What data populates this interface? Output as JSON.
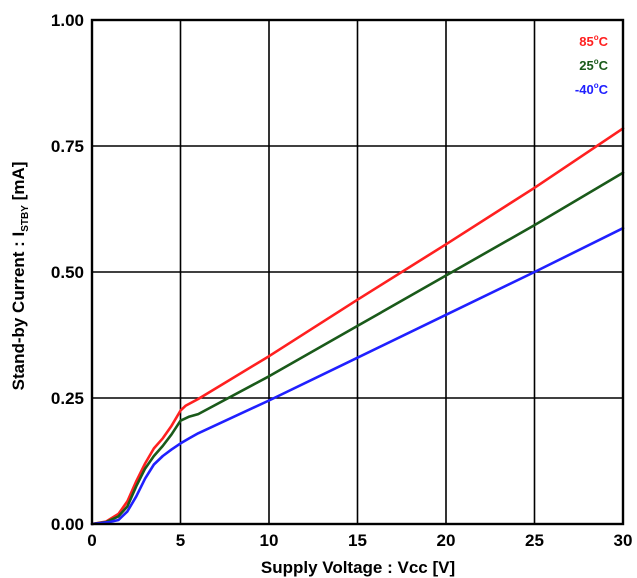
{
  "chart_data": {
    "type": "line",
    "xlabel": "Supply Voltage : Vcc [V]",
    "ylabel_main": "Stand-by Current : I",
    "ylabel_sub": "STBY",
    "ylabel_unit": " [mA]",
    "xlim": [
      0,
      30
    ],
    "ylim": [
      0,
      1.0
    ],
    "x_ticks": [
      0,
      5,
      10,
      15,
      20,
      25,
      30
    ],
    "x_tick_labels": [
      "0",
      "5",
      "10",
      "15",
      "20",
      "25",
      "30"
    ],
    "y_ticks": [
      0,
      0.25,
      0.5,
      0.75,
      1.0
    ],
    "y_tick_labels": [
      "0.00",
      "0.25",
      "0.50",
      "0.75",
      "1.00"
    ],
    "grid": true,
    "legend_position": "top-right",
    "series": [
      {
        "name": "85°C",
        "name_main": "85",
        "name_sup": "o",
        "name_unit": "C",
        "color": "#ff2020",
        "points": [
          [
            0,
            0
          ],
          [
            0.8,
            0.005
          ],
          [
            1.5,
            0.02
          ],
          [
            2,
            0.045
          ],
          [
            2.5,
            0.085
          ],
          [
            3,
            0.12
          ],
          [
            3.5,
            0.15
          ],
          [
            4,
            0.17
          ],
          [
            4.5,
            0.195
          ],
          [
            5,
            0.225
          ],
          [
            5.3,
            0.235
          ],
          [
            6,
            0.248
          ],
          [
            10,
            0.333
          ],
          [
            15,
            0.445
          ],
          [
            20,
            0.555
          ],
          [
            25,
            0.667
          ],
          [
            30,
            0.785
          ]
        ]
      },
      {
        "name": "25°C",
        "name_main": "25",
        "name_sup": "o",
        "name_unit": "C",
        "color": "#1a5a1a",
        "points": [
          [
            0,
            0
          ],
          [
            0.8,
            0.004
          ],
          [
            1.5,
            0.015
          ],
          [
            2,
            0.035
          ],
          [
            2.5,
            0.075
          ],
          [
            3,
            0.11
          ],
          [
            3.5,
            0.135
          ],
          [
            4,
            0.155
          ],
          [
            4.5,
            0.178
          ],
          [
            5,
            0.205
          ],
          [
            5.5,
            0.213
          ],
          [
            6,
            0.218
          ],
          [
            10,
            0.293
          ],
          [
            15,
            0.393
          ],
          [
            20,
            0.493
          ],
          [
            25,
            0.593
          ],
          [
            30,
            0.697
          ]
        ]
      },
      {
        "name": "-40°C",
        "name_main": "-40",
        "name_sup": "o",
        "name_unit": "C",
        "color": "#2020ff",
        "points": [
          [
            0,
            0
          ],
          [
            1,
            0.004
          ],
          [
            1.5,
            0.008
          ],
          [
            2,
            0.025
          ],
          [
            2.5,
            0.055
          ],
          [
            3,
            0.09
          ],
          [
            3.5,
            0.118
          ],
          [
            4,
            0.135
          ],
          [
            4.5,
            0.148
          ],
          [
            5,
            0.16
          ],
          [
            5.5,
            0.17
          ],
          [
            6,
            0.18
          ],
          [
            10,
            0.245
          ],
          [
            15,
            0.33
          ],
          [
            20,
            0.415
          ],
          [
            25,
            0.5
          ],
          [
            30,
            0.587
          ]
        ]
      }
    ]
  }
}
